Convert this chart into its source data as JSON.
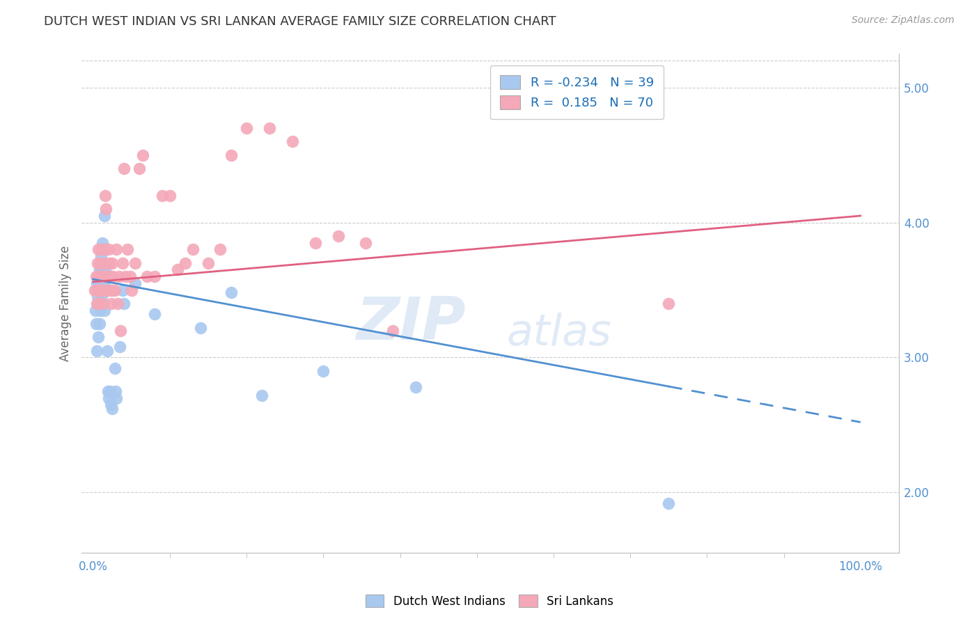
{
  "title": "DUTCH WEST INDIAN VS SRI LANKAN AVERAGE FAMILY SIZE CORRELATION CHART",
  "source": "Source: ZipAtlas.com",
  "ylabel": "Average Family Size",
  "right_yticks": [
    2.0,
    3.0,
    4.0,
    5.0
  ],
  "legend_blue_r": "-0.234",
  "legend_blue_n": "39",
  "legend_pink_r": "0.185",
  "legend_pink_n": "70",
  "blue_color": "#A8C8F0",
  "pink_color": "#F4A8B8",
  "blue_line_color": "#5090D0",
  "pink_line_color": "#E06080",
  "watermark_zip": "ZIP",
  "watermark_atlas": "atlas",
  "blue_scatter_x": [
    0.3,
    0.4,
    0.5,
    0.5,
    0.6,
    0.7,
    0.7,
    0.8,
    0.8,
    0.9,
    1.0,
    1.0,
    1.1,
    1.1,
    1.2,
    1.2,
    1.5,
    1.5,
    1.5,
    1.6,
    1.8,
    1.9,
    2.0,
    2.2,
    2.3,
    2.5,
    2.8,
    2.9,
    3.0,
    3.5,
    3.8,
    4.0,
    5.5,
    8.0,
    14.0,
    18.0,
    22.0,
    30.0,
    42.0,
    75.0
  ],
  "blue_scatter_y": [
    3.35,
    3.25,
    3.55,
    3.05,
    3.45,
    3.15,
    3.55,
    3.25,
    3.65,
    3.35,
    3.75,
    3.55,
    3.65,
    3.45,
    3.85,
    3.55,
    4.05,
    3.55,
    3.35,
    3.65,
    3.05,
    2.75,
    2.7,
    2.75,
    2.65,
    2.62,
    2.92,
    2.75,
    2.7,
    3.08,
    3.5,
    3.4,
    3.55,
    3.32,
    3.22,
    3.48,
    2.72,
    2.9,
    2.78,
    1.92
  ],
  "pink_scatter_x": [
    0.2,
    0.4,
    0.5,
    0.5,
    0.6,
    0.6,
    0.7,
    0.7,
    0.7,
    0.8,
    0.8,
    0.9,
    0.9,
    1.0,
    1.0,
    1.1,
    1.1,
    1.2,
    1.2,
    1.3,
    1.3,
    1.4,
    1.4,
    1.5,
    1.5,
    1.6,
    1.6,
    1.7,
    1.8,
    1.9,
    2.0,
    2.1,
    2.2,
    2.3,
    2.4,
    2.5,
    2.5,
    2.6,
    2.8,
    3.0,
    3.2,
    3.4,
    3.6,
    3.8,
    4.0,
    4.2,
    4.5,
    4.8,
    5.0,
    5.5,
    6.0,
    6.5,
    7.0,
    8.0,
    9.0,
    10.0,
    11.0,
    12.0,
    13.0,
    15.0,
    16.5,
    18.0,
    20.0,
    23.0,
    26.0,
    29.0,
    32.0,
    35.5,
    39.0,
    75.0
  ],
  "pink_scatter_y": [
    3.5,
    3.6,
    3.4,
    3.5,
    3.7,
    3.5,
    3.4,
    3.6,
    3.8,
    3.5,
    3.6,
    3.7,
    3.5,
    3.8,
    3.5,
    3.6,
    3.7,
    3.5,
    3.6,
    3.4,
    3.8,
    3.5,
    3.7,
    3.6,
    3.8,
    3.5,
    4.2,
    4.1,
    3.6,
    3.5,
    3.8,
    3.7,
    3.6,
    3.5,
    3.4,
    3.7,
    3.5,
    3.6,
    3.5,
    3.8,
    3.4,
    3.6,
    3.2,
    3.7,
    4.4,
    3.6,
    3.8,
    3.6,
    3.5,
    3.7,
    4.4,
    4.5,
    3.6,
    3.6,
    4.2,
    4.2,
    3.65,
    3.7,
    3.8,
    3.7,
    3.8,
    4.5,
    4.7,
    4.7,
    4.6,
    3.85,
    3.9,
    3.85,
    3.2,
    3.4
  ],
  "blue_trend_x_start": 0.0,
  "blue_trend_x_solid_end": 75.0,
  "blue_trend_x_end": 100.0,
  "blue_trend_y_start": 3.58,
  "blue_trend_y_end": 2.52,
  "pink_trend_x_start": 0.0,
  "pink_trend_x_end": 100.0,
  "pink_trend_y_start": 3.56,
  "pink_trend_y_end": 4.05,
  "ylim_bottom": 1.55,
  "ylim_top": 5.25,
  "xlim_left": -1.5,
  "xlim_right": 105.0,
  "xtick_left_label": "0.0%",
  "xtick_right_label": "100.0%"
}
